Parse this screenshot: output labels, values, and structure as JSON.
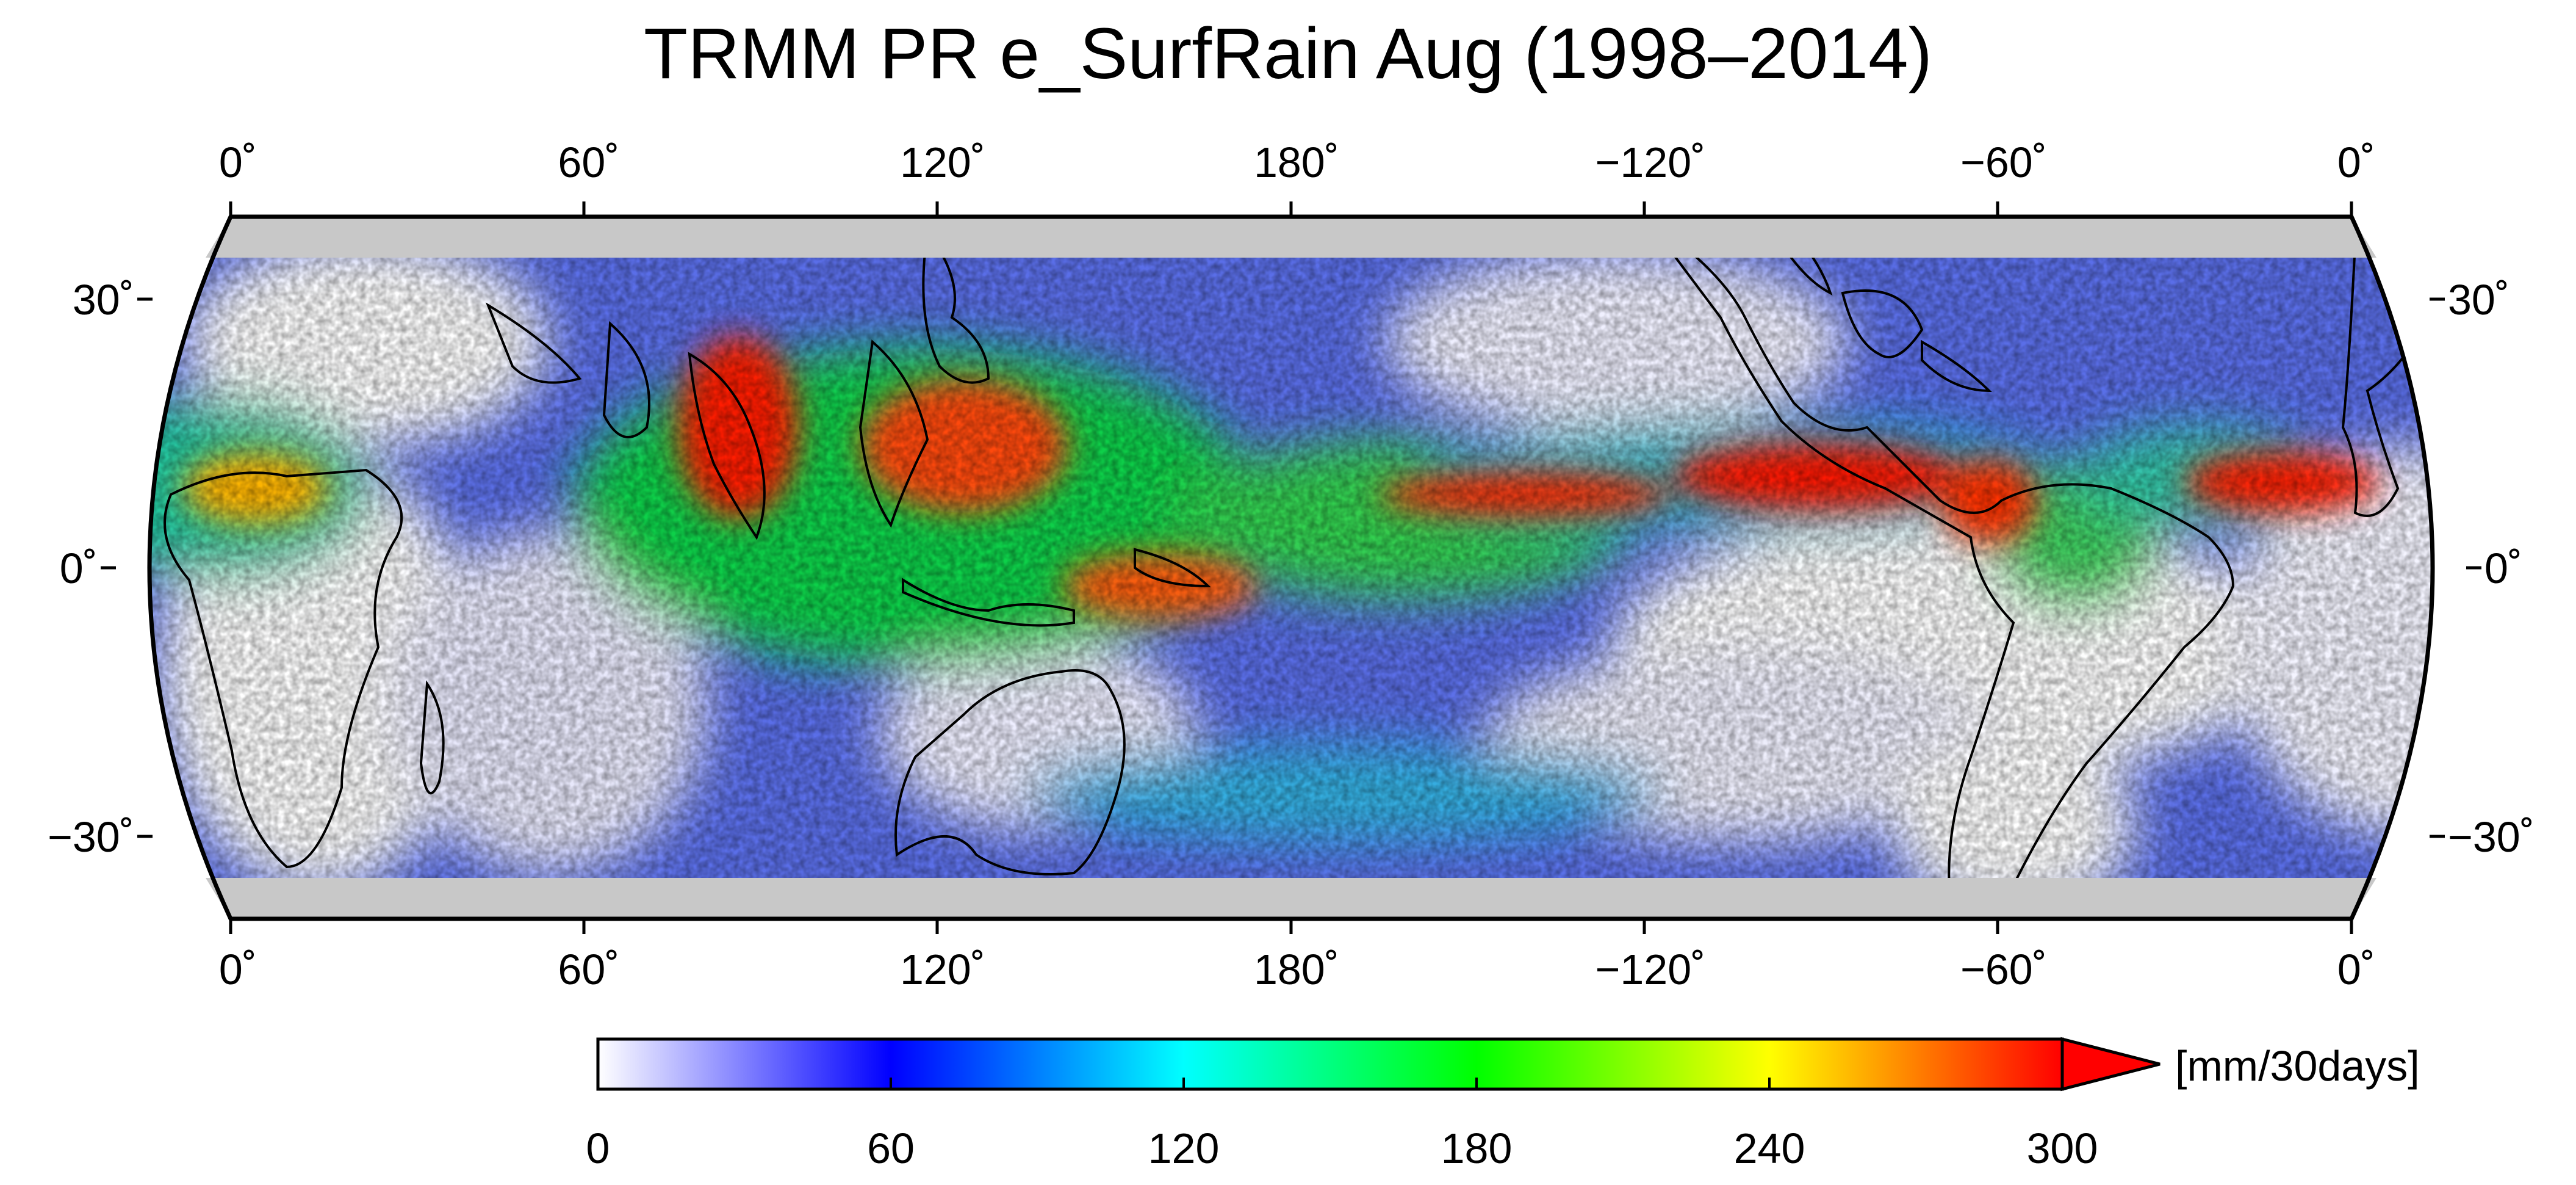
{
  "title": "TRMM PR e_SurfRain Aug (1998–2014)",
  "map": {
    "projection": "robinson",
    "central_longitude": 180,
    "lat_range": [
      -38,
      38
    ],
    "data_lat_range": [
      -35,
      35
    ],
    "lon_ticks": [
      "0˚",
      "60˚",
      "120˚",
      "180˚",
      "−120˚",
      "−60˚",
      "0˚"
    ],
    "lat_ticks": [
      "30˚",
      "0˚",
      "−30˚"
    ],
    "masked_color": "#c8c8c8"
  },
  "colorbar": {
    "ticks": [
      "0",
      "60",
      "120",
      "180",
      "240",
      "300"
    ],
    "range": [
      0,
      300
    ],
    "extend": "max",
    "unit": "[mm/30days]",
    "colors": [
      "#ffffff",
      "#0000ff",
      "#00ffff",
      "#00ff00",
      "#ffff00",
      "#ff0000"
    ]
  }
}
